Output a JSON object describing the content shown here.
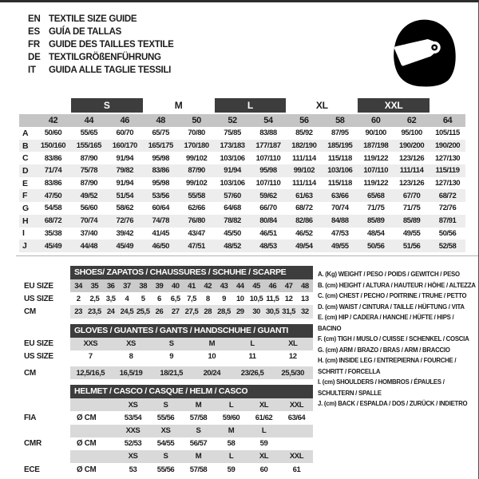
{
  "colors": {
    "bar_dark": "#3d3d3d",
    "sizes_row_gray": "#c5c5c5",
    "row_stripe": "#ededed",
    "shade_mid": "#d9d9d9",
    "text": "#1c1c1c"
  },
  "languages": [
    {
      "code": "EN",
      "text": "TEXTILE SIZE GUIDE"
    },
    {
      "code": "ES",
      "text": "GUÍA DE TALLAS"
    },
    {
      "code": "FR",
      "text": "GUIDE DES TAILLES TEXTILE"
    },
    {
      "code": "DE",
      "text": "TEXTILGRÖßENFÜHRUNG"
    },
    {
      "code": "IT",
      "text": "GUIDA ALLE TAGLIE TESSILI"
    }
  ],
  "helmet_icon": "racing-helmet-icon",
  "size_table": {
    "group_headers": [
      {
        "label": "",
        "span": 2,
        "dark": false
      },
      {
        "label": "S",
        "span": 2,
        "dark": true
      },
      {
        "label": "M",
        "span": 2,
        "dark": false
      },
      {
        "label": "L",
        "span": 2,
        "dark": true
      },
      {
        "label": "XL",
        "span": 2,
        "dark": false
      },
      {
        "label": "XXL",
        "span": 2,
        "dark": true
      },
      {
        "label": "",
        "span": 1,
        "dark": false
      }
    ],
    "sizes": [
      "42",
      "44",
      "46",
      "48",
      "50",
      "52",
      "54",
      "56",
      "58",
      "60",
      "62",
      "64"
    ],
    "rows": [
      {
        "letter": "A",
        "values": [
          "50/60",
          "55/65",
          "60/70",
          "65/75",
          "70/80",
          "75/85",
          "83/88",
          "85/92",
          "87/95",
          "90/100",
          "95/100",
          "105/115"
        ]
      },
      {
        "letter": "B",
        "values": [
          "150/160",
          "155/165",
          "160/170",
          "165/175",
          "170/180",
          "173/183",
          "177/187",
          "182/190",
          "185/195",
          "187/198",
          "190/200",
          "190/200"
        ]
      },
      {
        "letter": "C",
        "values": [
          "83/86",
          "87/90",
          "91/94",
          "95/98",
          "99/102",
          "103/106",
          "107/110",
          "111/114",
          "115/118",
          "119/122",
          "123/126",
          "127/130"
        ]
      },
      {
        "letter": "D",
        "values": [
          "71/74",
          "75/78",
          "79/82",
          "83/86",
          "87/90",
          "91/94",
          "95/98",
          "99/102",
          "103/106",
          "107/110",
          "111/114",
          "115/119"
        ]
      },
      {
        "letter": "E",
        "values": [
          "83/86",
          "87/90",
          "91/94",
          "95/98",
          "99/102",
          "103/106",
          "107/110",
          "111/114",
          "115/118",
          "119/122",
          "123/126",
          "127/130"
        ]
      },
      {
        "letter": "F",
        "values": [
          "47/50",
          "49/52",
          "51/54",
          "53/56",
          "55/58",
          "57/60",
          "59/62",
          "61/63",
          "63/66",
          "65/68",
          "67/70",
          "68/72"
        ]
      },
      {
        "letter": "G",
        "values": [
          "54/58",
          "56/60",
          "58/62",
          "60/64",
          "62/66",
          "64/68",
          "66/70",
          "68/72",
          "70/74",
          "71/75",
          "71/75",
          "72/76"
        ]
      },
      {
        "letter": "H",
        "values": [
          "68/72",
          "70/74",
          "72/76",
          "74/78",
          "76/80",
          "78/82",
          "80/84",
          "82/86",
          "84/88",
          "85/89",
          "85/89",
          "87/91"
        ]
      },
      {
        "letter": "I",
        "values": [
          "35/38",
          "37/40",
          "39/42",
          "41/45",
          "43/47",
          "45/50",
          "46/51",
          "46/52",
          "47/53",
          "48/54",
          "49/55",
          "50/56"
        ]
      },
      {
        "letter": "J",
        "values": [
          "45/49",
          "44/48",
          "45/49",
          "46/50",
          "47/51",
          "48/52",
          "48/53",
          "49/54",
          "49/55",
          "50/56",
          "51/56",
          "52/58"
        ]
      }
    ]
  },
  "shoes_table": {
    "title": "SHOES/ ZAPATOS / CHAUSSURES / SCHUHE / SCARPE",
    "rows": [
      {
        "label": "EU SIZE",
        "shade": "gray",
        "values": [
          "34",
          "35",
          "36",
          "37",
          "38",
          "39",
          "40",
          "41",
          "42",
          "43",
          "44",
          "45",
          "46",
          "47",
          "48"
        ]
      },
      {
        "label": "US SIZE",
        "shade": "none",
        "values": [
          "2",
          "2,5",
          "3,5",
          "4",
          "5",
          "6",
          "6,5",
          "7,5",
          "8",
          "9",
          "10",
          "10,5",
          "11,5",
          "12",
          "13"
        ]
      },
      {
        "label": "CM",
        "shade": "light",
        "values": [
          "23",
          "23,5",
          "24",
          "24,5",
          "25,5",
          "26",
          "27",
          "27,5",
          "28",
          "28,5",
          "29",
          "30",
          "30,5",
          "31,5",
          "32"
        ]
      }
    ]
  },
  "gloves_table": {
    "title": "GLOVES / GUANTES / GANTS / HANDSCHUHE / GUANTI",
    "rows": [
      {
        "label": "EU SIZE",
        "shade": "mid",
        "values": [
          "XXS",
          "XS",
          "S",
          "M",
          "L",
          "XL"
        ]
      },
      {
        "label": "US SIZE",
        "shade": "none",
        "values": [
          "7",
          "8",
          "9",
          "10",
          "11",
          "12"
        ]
      },
      {
        "label": "CM",
        "shade": "mid",
        "gap_top": true,
        "values": [
          "12,5/16,5",
          "16,5/19",
          "18/21,5",
          "20/24",
          "23/26,5",
          "25,5/30"
        ]
      }
    ]
  },
  "helmet_table": {
    "title": "HELMET / CASCO / CASQUE / HELM / CASCO",
    "has_prefix": true,
    "rows": [
      {
        "label": "",
        "prefix": "",
        "shade": "mid",
        "values": [
          "XS",
          "S",
          "M",
          "L",
          "XL",
          "XXL"
        ]
      },
      {
        "label": "FIA",
        "prefix": "Ø CM",
        "shade": "none",
        "values": [
          "53/54",
          "55/56",
          "57/58",
          "59/60",
          "61/62",
          "63/64"
        ]
      },
      {
        "label": "",
        "prefix": "",
        "shade": "mid",
        "values": [
          "XXS",
          "XS",
          "S",
          "M",
          "L",
          ""
        ]
      },
      {
        "label": "CMR",
        "prefix": "Ø CM",
        "shade": "none",
        "values": [
          "52/53",
          "54/55",
          "56/57",
          "58",
          "59",
          ""
        ]
      },
      {
        "label": "",
        "prefix": "",
        "shade": "mid",
        "values": [
          "XS",
          "S",
          "M",
          "L",
          "XL",
          "XXL"
        ]
      },
      {
        "label": "ECE",
        "prefix": "Ø CM",
        "shade": "none",
        "values": [
          "53",
          "55/56",
          "57/58",
          "59",
          "60",
          "61"
        ]
      }
    ]
  },
  "legend": {
    "items": [
      "A. (Kg) WEIGHT / PESO / POIDS / GEWITCH / PESO",
      "B. (cm) HEIGHT / ALTURA / HAUTEUR / HÖHE / ALTEZZA",
      "C. (cm) CHEST / PECHO / POITRINE / TRUHE / PETTO",
      "D. (cm) WAIST / CINTURA / TAILLE / HÜFTUNG / VITA",
      "E. (cm) HIP / CADERA / HANCHE / HÜFTE / HIPS / BACINO",
      "F. (cm) TIGH / MUSLO / CUISSE / SCHENKEL / COSCIA",
      "G. (cm) ARM / BRAZO / BRAS / ARM / BRACCIO",
      "H. (cm) INSIDE LEG / ENTREPIERNA / FOURCHE / SCHRITT / FORCELLA",
      "I. (cm) SHOULDERS / HOMBROS / ÉPAULES / SCHULTERN / SPALLE",
      "J. (cm) BACK / ESPALDA / DOS / ZURÜCK / INDIETRO"
    ]
  }
}
